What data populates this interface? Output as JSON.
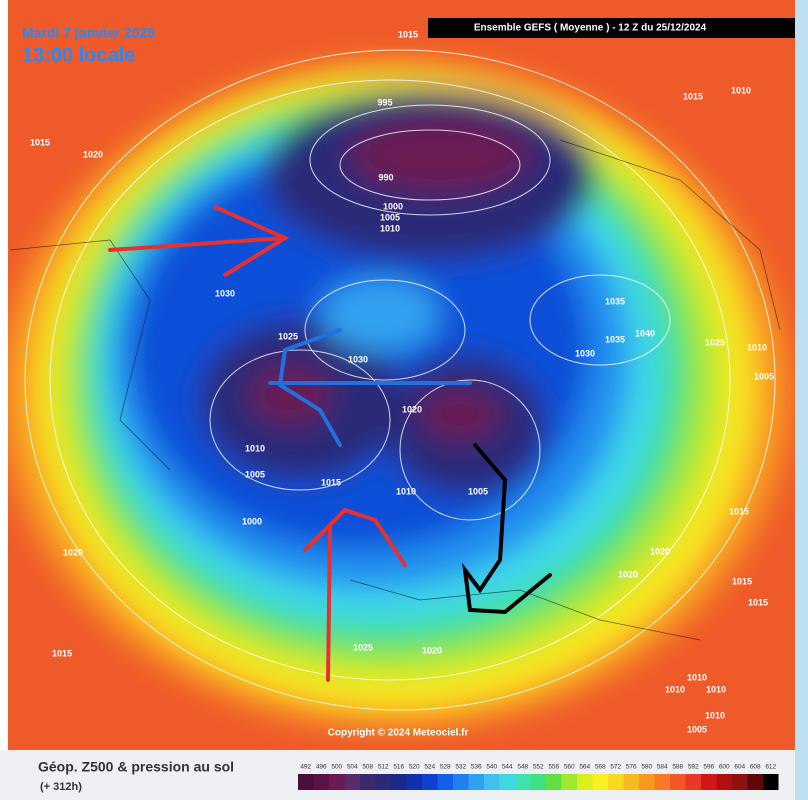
{
  "header": {
    "date": "Mardi 7 janvier 2025",
    "time": "13:00 locale",
    "run": "Ensemble GEFS  ( Moyenne )  -  12 Z du 25/12/2024"
  },
  "pressure_labels": [
    1015,
    1015,
    1010,
    995,
    1015,
    1020,
    990,
    1000,
    1005,
    1010,
    1030,
    1035,
    1025,
    1035,
    1040,
    1025,
    1010,
    1030,
    1030,
    1005,
    1020,
    1010,
    1005,
    1015,
    1010,
    1005,
    1000,
    1015,
    1020,
    1020,
    1020,
    1015,
    1015,
    1015,
    1025,
    1020,
    1010,
    1010,
    1010,
    1010,
    1005
  ],
  "copyright": "Copyright © 2024 Meteociel.fr",
  "footer": {
    "title": "Géop. Z500 & pression au sol",
    "lead": "(+ 312h)"
  },
  "legend": {
    "levels": [
      492,
      496,
      500,
      504,
      508,
      512,
      516,
      520,
      524,
      528,
      532,
      536,
      540,
      544,
      548,
      552,
      556,
      560,
      564,
      568,
      572,
      576,
      580,
      584,
      588,
      592,
      596,
      600,
      604,
      608,
      612
    ],
    "colors": [
      "#4b0f3d",
      "#5a1348",
      "#6b1a52",
      "#5a2a6a",
      "#3b2a70",
      "#2a2a78",
      "#1a2a8a",
      "#1030b0",
      "#1040d0",
      "#1060e8",
      "#2080f0",
      "#30a0f0",
      "#40c0f0",
      "#40d8e0",
      "#40e0b0",
      "#40e080",
      "#60e040",
      "#a0e830",
      "#d8f020",
      "#f8f020",
      "#f8d820",
      "#f8b820",
      "#f89820",
      "#f87828",
      "#f05828",
      "#e83828",
      "#d01818",
      "#b01010",
      "#901010",
      "#600808",
      "#000000"
    ]
  }
}
